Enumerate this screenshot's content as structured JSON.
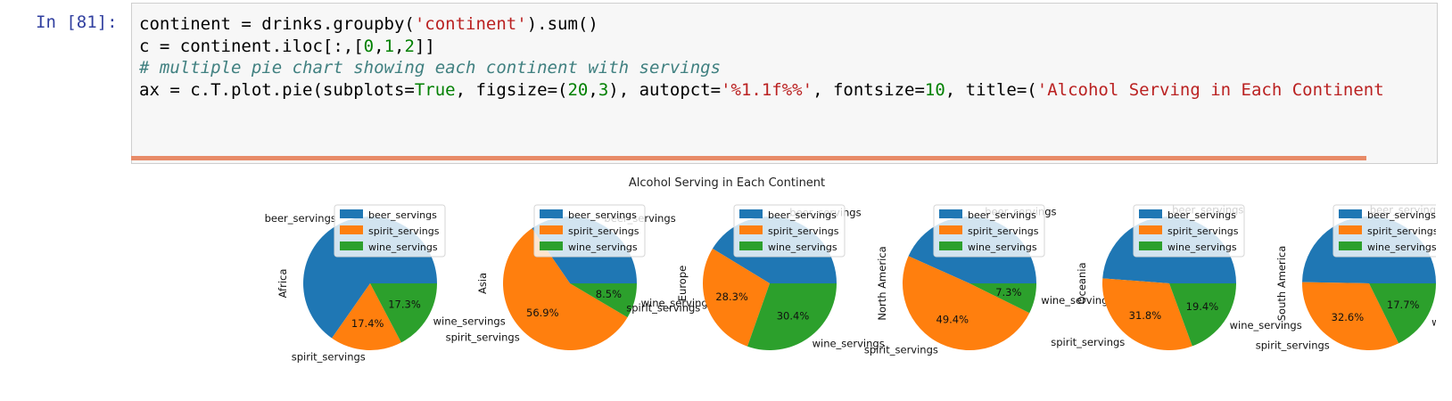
{
  "cell": {
    "prompt": "In [81]:",
    "code_lines": [
      [
        {
          "t": "plain",
          "s": "continent = drinks.groupby("
        },
        {
          "t": "str",
          "s": "'continent'"
        },
        {
          "t": "plain",
          "s": ").sum()"
        }
      ],
      [
        {
          "t": "plain",
          "s": "c = continent.iloc[:,["
        },
        {
          "t": "num",
          "s": "0"
        },
        {
          "t": "plain",
          "s": ","
        },
        {
          "t": "num",
          "s": "1"
        },
        {
          "t": "plain",
          "s": ","
        },
        {
          "t": "num",
          "s": "2"
        },
        {
          "t": "plain",
          "s": "]]"
        }
      ],
      [
        {
          "t": "com",
          "s": "# multiple pie chart showing each continent with servings"
        }
      ],
      [
        {
          "t": "plain",
          "s": "ax = c.T.plot.pie(subplots="
        },
        {
          "t": "kw",
          "s": "True"
        },
        {
          "t": "plain",
          "s": ", figsize=("
        },
        {
          "t": "num",
          "s": "20"
        },
        {
          "t": "plain",
          "s": ","
        },
        {
          "t": "num",
          "s": "3"
        },
        {
          "t": "plain",
          "s": "), autopct="
        },
        {
          "t": "str",
          "s": "'%1.1f%%'"
        },
        {
          "t": "plain",
          "s": ", fontsize="
        },
        {
          "t": "num",
          "s": "10"
        },
        {
          "t": "plain",
          "s": ", title=("
        },
        {
          "t": "str",
          "s": "'Alcohol Serving in Each Continent"
        }
      ]
    ]
  },
  "colors": {
    "beer_servings": "#1f77b4",
    "spirit_servings": "#ff7f0e",
    "wine_servings": "#2ca02c"
  },
  "chart_data": {
    "type": "pie",
    "title": "Alcohol Serving in Each Continent",
    "categories": [
      "beer_servings",
      "spirit_servings",
      "wine_servings"
    ],
    "legend": [
      "beer_servings",
      "spirit_servings",
      "wine_servings"
    ],
    "legend_position": "top-right",
    "series": [
      {
        "name": "Africa",
        "values": [
          65.3,
          17.4,
          17.3
        ],
        "labels": [
          "",
          "17.4%",
          "17.3%"
        ]
      },
      {
        "name": "Asia",
        "values": [
          34.6,
          56.9,
          8.5
        ],
        "labels": [
          "",
          "56.9%",
          "8.5%"
        ]
      },
      {
        "name": "Europe",
        "values": [
          41.3,
          28.3,
          30.4
        ],
        "labels": [
          "",
          "28.3%",
          "30.4%"
        ]
      },
      {
        "name": "North America",
        "values": [
          43.3,
          49.4,
          7.3
        ],
        "labels": [
          "",
          "49.4%",
          "7.3%"
        ]
      },
      {
        "name": "Oceania",
        "values": [
          48.8,
          31.8,
          19.4
        ],
        "labels": [
          "",
          "31.8%",
          "19.4%"
        ]
      },
      {
        "name": "South America",
        "values": [
          49.7,
          32.6,
          17.7
        ],
        "labels": [
          "",
          "32.6%",
          "17.7%"
        ]
      }
    ]
  }
}
